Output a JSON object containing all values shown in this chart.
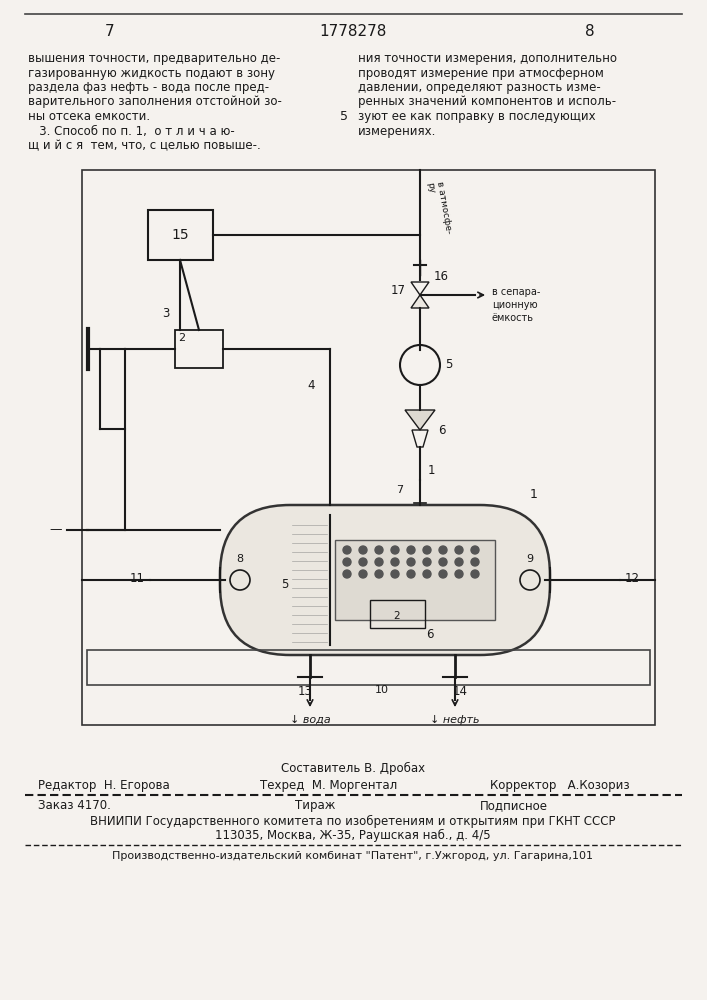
{
  "page_number_left": "7",
  "page_number_center": "1778278",
  "page_number_right": "8",
  "text_left_lines": [
    "вышения точности, предварительно де-",
    "газированную жидкость подают в зону",
    "раздела фаз нефть - вода после пред-",
    "варительного заполнения отстойной зо-",
    "ны отсека емкости.",
    "   3. Способ по п. 1,  о т л и ч а ю-",
    "щ и й с я  тем, что, с целью повыше-."
  ],
  "text_right_lines": [
    "ния точности измерения, дополнительно",
    "проводят измерение при атмосферном",
    "давлении, определяют разность изме-",
    "ренных значений компонентов и исполь-",
    "зуют ее как поправку в последующих",
    "измерениях."
  ],
  "line_number_5": "5",
  "editor_label": "Редактор",
  "editor_name": "Н. Егорова",
  "composer_label": "Составитель",
  "composer_name": "В. Дробах",
  "corrector_label": "Корректор",
  "corrector_name": "А.Козориз",
  "techred_label": "Техред",
  "techred_name": "М. Моргентал",
  "order_text": "Заказ 4170.",
  "tirazh_text": "Тираж",
  "podpisnoe_text": "Подписное",
  "vniipi_text": "ВНИИПИ Государственного комитета по изобретениям и открытиям при ГКНТ СССР",
  "address_text": "113035, Москва, Ж-35, Раушская наб., д. 4/5",
  "publisher_text": "Производственно-издательский комбинат \"Патент\", г.Ужгород, ул. Гагарина,101",
  "bg_color": "#f5f2ee",
  "text_color": "#1a1a1a"
}
